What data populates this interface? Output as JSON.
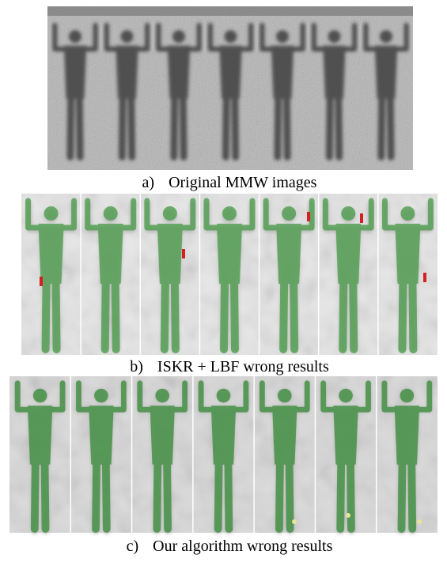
{
  "figure": {
    "panels": [
      {
        "letter": "a)",
        "caption": "Original MMW images"
      },
      {
        "letter": "b)",
        "caption": "ISKR + LBF wrong results"
      },
      {
        "letter": "c)",
        "caption": "Our algorithm wrong results"
      }
    ]
  }
}
